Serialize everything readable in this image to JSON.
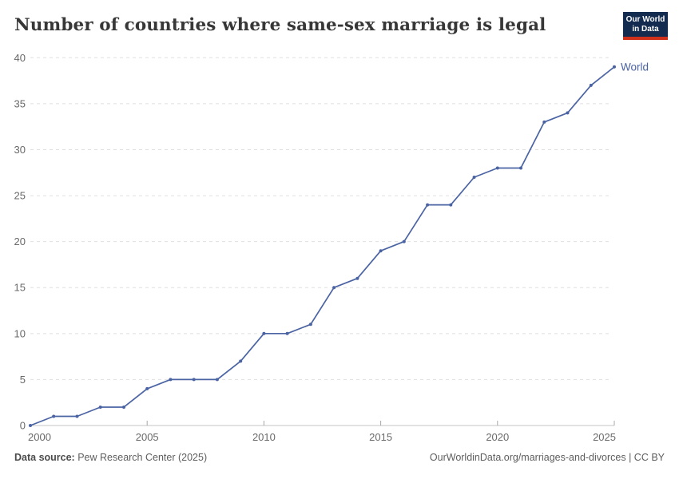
{
  "header": {
    "title": "Number of countries where same-sex marriage is legal",
    "logo": {
      "line1": "Our World",
      "line2": "in Data"
    }
  },
  "footer": {
    "source_label": "Data source:",
    "source_value": "Pew Research Center (2025)",
    "attribution": "OurWorldinData.org/marriages-and-divorces | CC BY"
  },
  "colors": {
    "line": "#4a63a3",
    "series_label": "#4a63a3",
    "grid": "#e0e0e0",
    "axis": "#c6c6c6",
    "tick": "#a8a8a8",
    "tick_label": "#696969",
    "title": "#373737",
    "footer_text": "#5e5e5e",
    "logo_bg": "#122b4e",
    "logo_bar": "#ce3019"
  },
  "chart_data": {
    "type": "line",
    "title": "Number of countries where same-sex marriage is legal",
    "xlabel": "",
    "ylabel": "",
    "xlim": [
      2000,
      2025
    ],
    "ylim": [
      0,
      40
    ],
    "xticks": [
      2000,
      2005,
      2010,
      2015,
      2020,
      2025
    ],
    "yticks": [
      0,
      5,
      10,
      15,
      20,
      25,
      30,
      35,
      40
    ],
    "grid": "horizontal-dashed",
    "legend_position": "end-of-line",
    "series": [
      {
        "name": "World",
        "x": [
          2000,
          2001,
          2002,
          2003,
          2004,
          2005,
          2006,
          2007,
          2008,
          2009,
          2010,
          2011,
          2012,
          2013,
          2014,
          2015,
          2016,
          2017,
          2018,
          2019,
          2020,
          2021,
          2022,
          2023,
          2024,
          2025
        ],
        "values": [
          0,
          1,
          1,
          2,
          2,
          4,
          5,
          5,
          5,
          7,
          10,
          10,
          11,
          15,
          16,
          19,
          20,
          24,
          24,
          27,
          28,
          28,
          33,
          34,
          37,
          39
        ]
      }
    ]
  }
}
